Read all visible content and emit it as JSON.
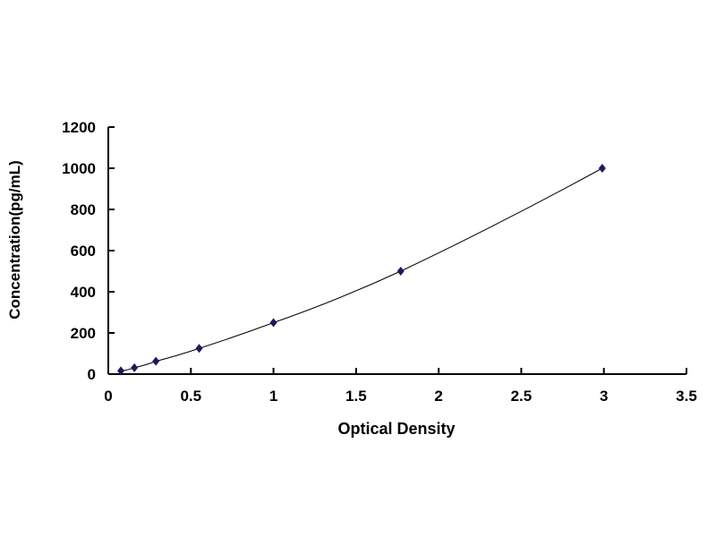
{
  "chart_data": {
    "type": "scatter",
    "title": "",
    "xlabel": "Optical Density",
    "ylabel": "Concentration(pg/mL)",
    "xlim": [
      0,
      3.5
    ],
    "ylim": [
      0,
      1200
    ],
    "xticks": [
      "0",
      "0.5",
      "1",
      "1.5",
      "2",
      "2.5",
      "3",
      "3.5"
    ],
    "yticks": [
      "0",
      "200",
      "400",
      "600",
      "800",
      "1000",
      "1200"
    ],
    "grid": false,
    "trendline": true,
    "marker_color": "#1a1a5e",
    "points": [
      {
        "x": 0.076,
        "y": 15.6
      },
      {
        "x": 0.158,
        "y": 31.25
      },
      {
        "x": 0.288,
        "y": 62.5
      },
      {
        "x": 0.55,
        "y": 125
      },
      {
        "x": 1.0,
        "y": 250
      },
      {
        "x": 1.77,
        "y": 500
      },
      {
        "x": 2.99,
        "y": 1000
      }
    ]
  }
}
